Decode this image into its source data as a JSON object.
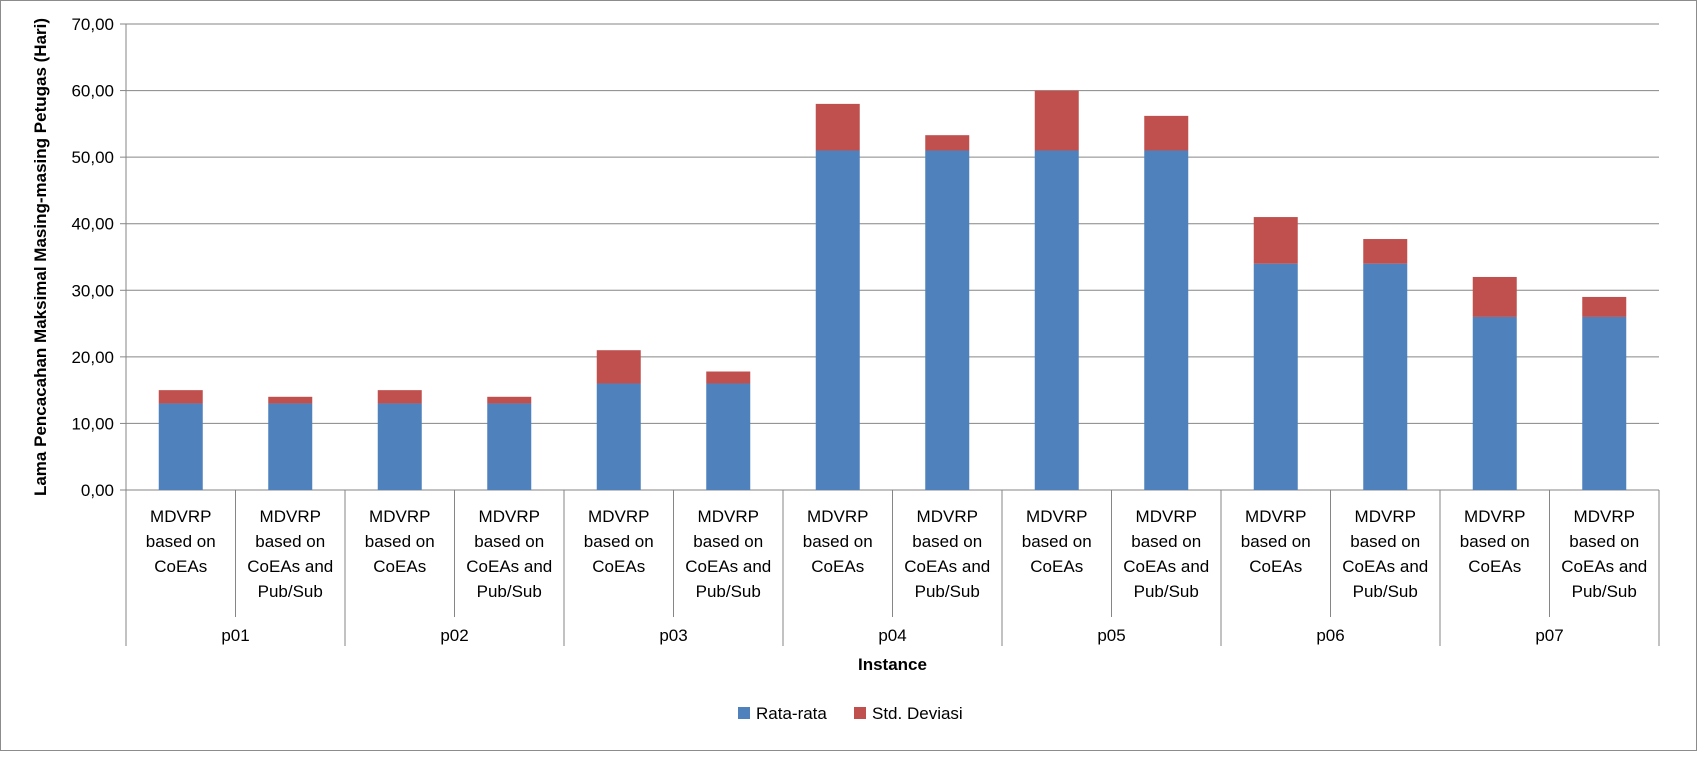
{
  "chart_data": {
    "type": "bar",
    "stacked": true,
    "title": "",
    "xlabel": "Instance",
    "ylabel": "Lama Pencacahan Maksimal Masing-masing  Petugas (Hari)",
    "ylim": [
      0,
      70
    ],
    "yticks": [
      "0,00",
      "10,00",
      "20,00",
      "30,00",
      "40,00",
      "50,00",
      "60,00",
      "70,00"
    ],
    "grid": true,
    "legend_position": "bottom",
    "groups": [
      "p01",
      "p02",
      "p03",
      "p04",
      "p05",
      "p06",
      "p07"
    ],
    "category_labels": [
      [
        "MDVRP",
        "based on",
        "CoEAs"
      ],
      [
        "MDVRP",
        "based on",
        "CoEAs and",
        "Pub/Sub"
      ]
    ],
    "series": [
      {
        "name": "Rata-rata",
        "color": "#4f81bd",
        "values": [
          13,
          13,
          13,
          13,
          16,
          16,
          51,
          51,
          51,
          51,
          34,
          34,
          26,
          26
        ]
      },
      {
        "name": "Std. Deviasi",
        "color": "#c0504d",
        "values": [
          2,
          1,
          2,
          1,
          5,
          1.8,
          7,
          2.3,
          9,
          5.2,
          7,
          3.7,
          6,
          3
        ]
      }
    ]
  }
}
